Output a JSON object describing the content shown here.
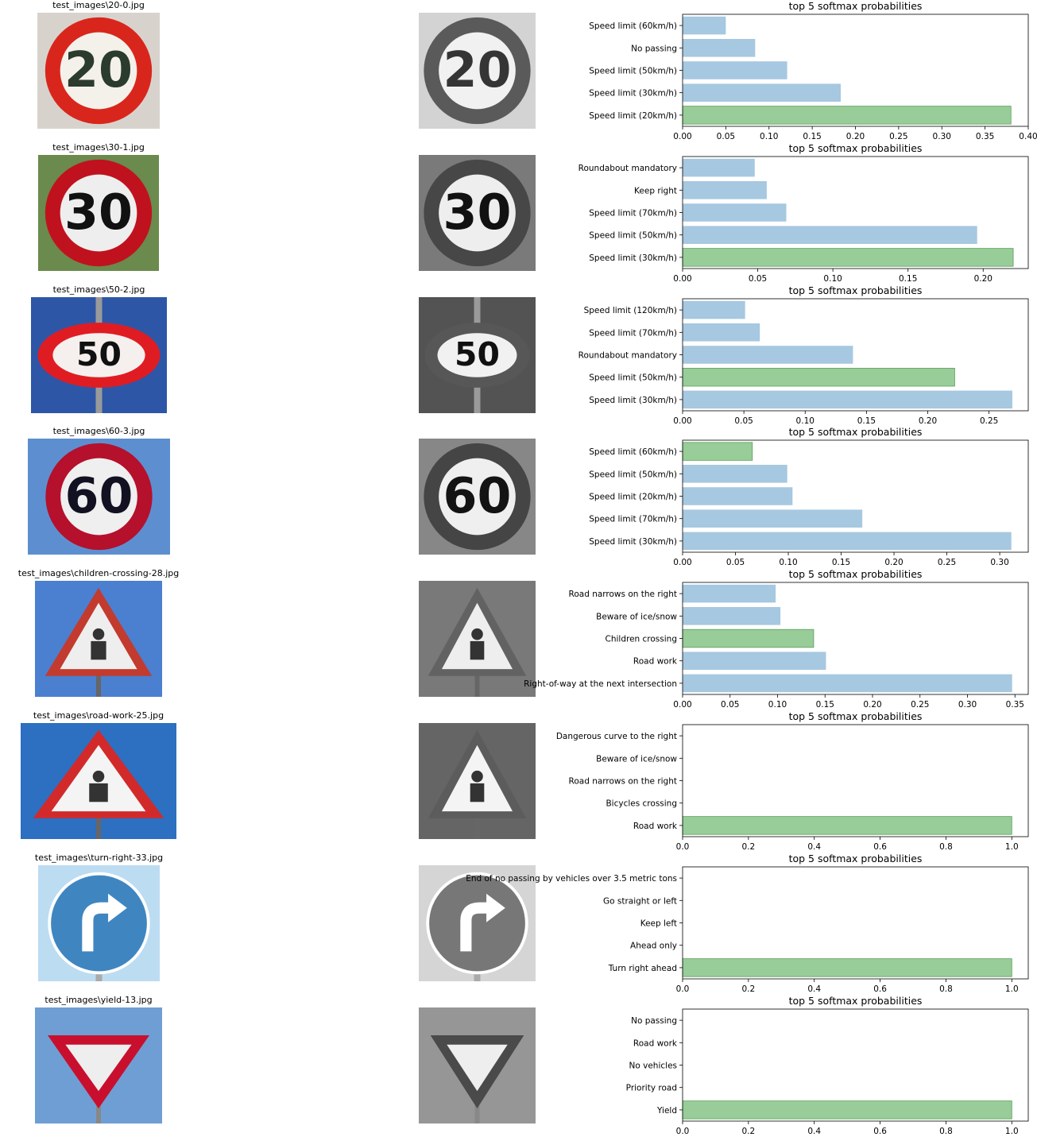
{
  "panels": [
    {
      "filename": "test_images\\20-0.jpg",
      "sign": {
        "shape": "circle",
        "text": "20",
        "bg": "#d7d3cc",
        "rim": "#d9261c",
        "face": "#f4f1ea",
        "ink": "#2b3b2e"
      },
      "chart_data": {
        "type": "bar",
        "orientation": "horizontal",
        "title": "top 5 softmax probabilities",
        "categories": [
          "Speed limit (20km/h)",
          "Speed limit (30km/h)",
          "Speed limit (50km/h)",
          "No passing",
          "Speed limit (60km/h)"
        ],
        "values": [
          0.38,
          0.183,
          0.121,
          0.084,
          0.05
        ],
        "highlight_index": 0,
        "xlim": [
          0,
          0.4
        ],
        "xticks": [
          "0.00",
          "0.05",
          "0.10",
          "0.15",
          "0.20",
          "0.25",
          "0.30",
          "0.35",
          "0.40"
        ]
      }
    },
    {
      "filename": "test_images\\30-1.jpg",
      "sign": {
        "shape": "circle",
        "text": "30",
        "bg": "#6b8a4d",
        "rim": "#c0121e",
        "face": "#eeeeee",
        "ink": "#111111"
      },
      "chart_data": {
        "type": "bar",
        "orientation": "horizontal",
        "title": "top 5 softmax probabilities",
        "categories": [
          "Speed limit (30km/h)",
          "Speed limit (50km/h)",
          "Speed limit (70km/h)",
          "Keep right",
          "Roundabout mandatory"
        ],
        "values": [
          0.22,
          0.196,
          0.069,
          0.056,
          0.048
        ],
        "highlight_index": 0,
        "xlim": [
          0,
          0.23
        ],
        "xticks": [
          "0.00",
          "0.05",
          "0.10",
          "0.15",
          "0.20"
        ]
      }
    },
    {
      "filename": "test_images\\50-2.jpg",
      "sign": {
        "shape": "oval",
        "text": "50",
        "bg": "#2e56a7",
        "rim": "#e01c23",
        "face": "#f5f0ee",
        "ink": "#111111"
      },
      "chart_data": {
        "type": "bar",
        "orientation": "horizontal",
        "title": "top 5 softmax probabilities",
        "categories": [
          "Speed limit (30km/h)",
          "Speed limit (50km/h)",
          "Roundabout mandatory",
          "Speed limit (70km/h)",
          "Speed limit (120km/h)"
        ],
        "values": [
          0.269,
          0.222,
          0.139,
          0.063,
          0.051
        ],
        "highlight_index": 1,
        "xlim": [
          0,
          0.282
        ],
        "xticks": [
          "0.00",
          "0.05",
          "0.10",
          "0.15",
          "0.20",
          "0.25"
        ]
      }
    },
    {
      "filename": "test_images\\60-3.jpg",
      "sign": {
        "shape": "circle",
        "text": "60",
        "bg": "#5d8fd0",
        "rim": "#b5102c",
        "face": "#efefef",
        "ink": "#111122"
      },
      "chart_data": {
        "type": "bar",
        "orientation": "horizontal",
        "title": "top 5 softmax probabilities",
        "categories": [
          "Speed limit (30km/h)",
          "Speed limit (70km/h)",
          "Speed limit (20km/h)",
          "Speed limit (50km/h)",
          "Speed limit (60km/h)"
        ],
        "values": [
          0.311,
          0.17,
          0.104,
          0.099,
          0.066
        ],
        "highlight_index": 4,
        "xlim": [
          0,
          0.327
        ],
        "xticks": [
          "0.00",
          "0.05",
          "0.10",
          "0.15",
          "0.20",
          "0.25",
          "0.30"
        ]
      }
    },
    {
      "filename": "test_images\\children-crossing-28.jpg",
      "sign": {
        "shape": "triangle-up",
        "text": "",
        "bg": "#4b7fd0",
        "rim": "#c23b2e",
        "face": "#eeeeee",
        "ink": "#333333"
      },
      "chart_data": {
        "type": "bar",
        "orientation": "horizontal",
        "title": "top 5 softmax probabilities",
        "categories": [
          "Right-of-way at the next intersection",
          "Road work",
          "Children crossing",
          "Beware of ice/snow",
          "Road narrows on the right"
        ],
        "values": [
          0.347,
          0.151,
          0.138,
          0.103,
          0.098
        ],
        "highlight_index": 2,
        "xlim": [
          0,
          0.364
        ],
        "xticks": [
          "0.00",
          "0.05",
          "0.10",
          "0.15",
          "0.20",
          "0.25",
          "0.30",
          "0.35"
        ]
      }
    },
    {
      "filename": "test_images\\road-work-25.jpg",
      "sign": {
        "shape": "triangle-up",
        "text": "",
        "bg": "#2d6fc0",
        "rim": "#d22a2a",
        "face": "#f4f4f4",
        "ink": "#333333"
      },
      "chart_data": {
        "type": "bar",
        "orientation": "horizontal",
        "title": "top 5 softmax probabilities",
        "categories": [
          "Road work",
          "Bicycles crossing",
          "Road narrows on the right",
          "Beware of ice/snow",
          "Dangerous curve to the right"
        ],
        "values": [
          1.0,
          0.0,
          0.0,
          0.0,
          0.0
        ],
        "highlight_index": 0,
        "xlim": [
          0,
          1.05
        ],
        "xticks": [
          "0.0",
          "0.2",
          "0.4",
          "0.6",
          "0.8",
          "1.0"
        ]
      }
    },
    {
      "filename": "test_images\\turn-right-33.jpg",
      "sign": {
        "shape": "arrow",
        "text": "",
        "bg": "#bcdcf2",
        "rim": "#ffffff",
        "face": "#3f86c1",
        "ink": "#ffffff"
      },
      "chart_data": {
        "type": "bar",
        "orientation": "horizontal",
        "title": "top 5 softmax probabilities",
        "categories": [
          "Turn right ahead",
          "Ahead only",
          "Keep left",
          "Go straight or left",
          "End of no passing by vehicles over 3.5 metric tons"
        ],
        "values": [
          1.0,
          0.0,
          0.0,
          0.0,
          0.0
        ],
        "highlight_index": 0,
        "xlim": [
          0,
          1.05
        ],
        "xticks": [
          "0.0",
          "0.2",
          "0.4",
          "0.6",
          "0.8",
          "1.0"
        ]
      }
    },
    {
      "filename": "test_images\\yield-13.jpg",
      "sign": {
        "shape": "triangle-down",
        "text": "",
        "bg": "#6f9ed4",
        "rim": "#c8102e",
        "face": "#eeeeee",
        "ink": "#333333"
      },
      "chart_data": {
        "type": "bar",
        "orientation": "horizontal",
        "title": "top 5 softmax probabilities",
        "categories": [
          "Yield",
          "Priority road",
          "No vehicles",
          "Road work",
          "No passing"
        ],
        "values": [
          1.0,
          0.0,
          0.0,
          0.0,
          0.0
        ],
        "highlight_index": 0,
        "xlim": [
          0,
          1.05
        ],
        "xticks": [
          "0.0",
          "0.2",
          "0.4",
          "0.6",
          "0.8",
          "1.0"
        ]
      }
    }
  ],
  "colors": {
    "bar": "#a6c8e0",
    "highlight": "#98cc98",
    "highlight_edge": "#5aa05a",
    "axis": "#000000"
  }
}
